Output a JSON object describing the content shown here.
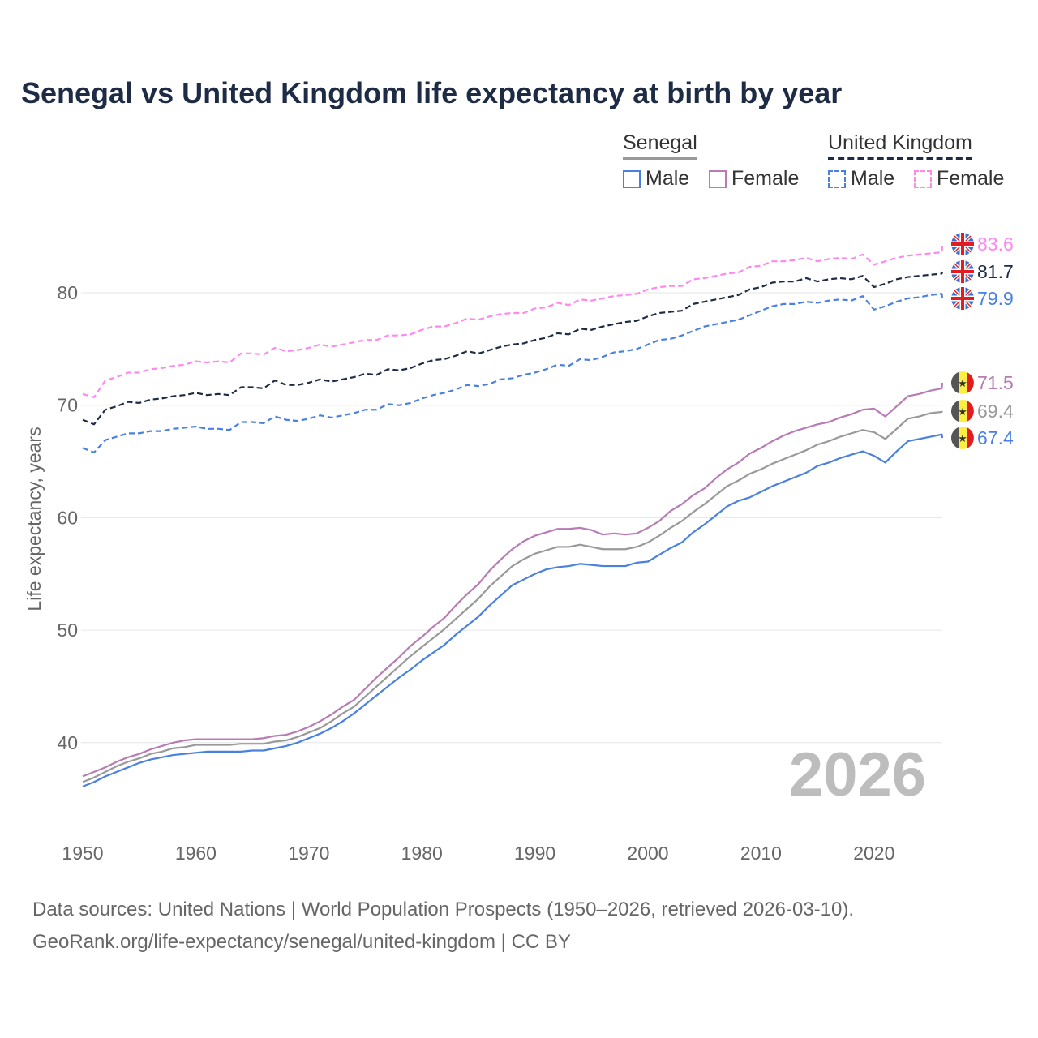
{
  "chart_data": {
    "type": "line",
    "title": "Senegal vs United Kingdom life expectancy at birth by year",
    "xlabel": "",
    "ylabel": "Life expectancy, years",
    "xlim": [
      1950,
      2026
    ],
    "ylim": [
      32,
      88
    ],
    "x_ticks": [
      "1950",
      "1960",
      "1970",
      "1980",
      "1990",
      "2000",
      "2010",
      "2020"
    ],
    "y_ticks": [
      "40",
      "50",
      "60",
      "70",
      "80"
    ],
    "grid": true,
    "year_start": 1950,
    "legend": {
      "groups": [
        {
          "name": "Senegal",
          "items": [
            "Male",
            "Female"
          ]
        },
        {
          "name": "United Kingdom",
          "items": [
            "Male",
            "Female"
          ]
        }
      ],
      "placement": "top-right"
    },
    "series": [
      {
        "name": "United Kingdom Female",
        "country": "United Kingdom",
        "color": "#ff88ee",
        "dashed": true,
        "end_label": "83.6",
        "values": [
          71.0,
          70.7,
          72.2,
          72.5,
          72.9,
          72.9,
          73.2,
          73.3,
          73.5,
          73.6,
          73.9,
          73.8,
          73.9,
          73.8,
          74.6,
          74.6,
          74.5,
          75.1,
          74.8,
          74.9,
          75.1,
          75.4,
          75.2,
          75.4,
          75.6,
          75.8,
          75.8,
          76.2,
          76.2,
          76.3,
          76.7,
          77.0,
          77.0,
          77.3,
          77.7,
          77.6,
          77.9,
          78.1,
          78.2,
          78.2,
          78.6,
          78.7,
          79.1,
          78.9,
          79.4,
          79.3,
          79.5,
          79.7,
          79.8,
          79.9,
          80.3,
          80.5,
          80.6,
          80.6,
          81.2,
          81.3,
          81.5,
          81.7,
          81.8,
          82.3,
          82.4,
          82.8,
          82.8,
          82.9,
          83.1,
          82.8,
          83.0,
          83.1,
          83.0,
          83.4,
          82.5,
          82.8,
          83.1,
          83.3,
          83.4,
          83.5,
          83.6
        ]
      },
      {
        "name": "United Kingdom Total",
        "country": "United Kingdom",
        "color": "#1d2b45",
        "dashed": true,
        "end_label": "81.7",
        "values": [
          68.7,
          68.3,
          69.6,
          69.9,
          70.3,
          70.2,
          70.5,
          70.6,
          70.8,
          70.9,
          71.1,
          70.9,
          71.0,
          70.9,
          71.6,
          71.6,
          71.5,
          72.2,
          71.8,
          71.8,
          72.0,
          72.3,
          72.1,
          72.3,
          72.5,
          72.8,
          72.7,
          73.2,
          73.1,
          73.3,
          73.7,
          74.0,
          74.1,
          74.4,
          74.8,
          74.6,
          74.9,
          75.2,
          75.4,
          75.5,
          75.8,
          76.0,
          76.4,
          76.3,
          76.8,
          76.7,
          77.0,
          77.2,
          77.4,
          77.5,
          77.9,
          78.2,
          78.3,
          78.4,
          79.0,
          79.2,
          79.4,
          79.6,
          79.8,
          80.3,
          80.5,
          80.9,
          81.0,
          81.0,
          81.3,
          81.0,
          81.2,
          81.3,
          81.2,
          81.5,
          80.5,
          80.8,
          81.2,
          81.4,
          81.5,
          81.6,
          81.7
        ]
      },
      {
        "name": "United Kingdom Male",
        "country": "United Kingdom",
        "color": "#4a80e0",
        "dashed": true,
        "end_label": "79.9",
        "values": [
          66.2,
          65.8,
          66.9,
          67.2,
          67.5,
          67.5,
          67.7,
          67.7,
          67.9,
          68.0,
          68.1,
          67.9,
          67.9,
          67.8,
          68.5,
          68.5,
          68.4,
          69.0,
          68.7,
          68.6,
          68.8,
          69.1,
          68.9,
          69.1,
          69.3,
          69.6,
          69.6,
          70.1,
          70.0,
          70.2,
          70.6,
          70.9,
          71.1,
          71.4,
          71.8,
          71.7,
          71.9,
          72.3,
          72.4,
          72.7,
          72.9,
          73.2,
          73.6,
          73.5,
          74.1,
          74.0,
          74.3,
          74.7,
          74.8,
          75.0,
          75.4,
          75.8,
          75.9,
          76.2,
          76.6,
          77.0,
          77.2,
          77.4,
          77.6,
          78.0,
          78.4,
          78.8,
          79.0,
          79.0,
          79.2,
          79.1,
          79.3,
          79.4,
          79.3,
          79.7,
          78.5,
          78.8,
          79.2,
          79.5,
          79.6,
          79.8,
          79.9
        ]
      },
      {
        "name": "Senegal Female",
        "country": "Senegal",
        "color": "#b87cb4",
        "dashed": false,
        "end_label": "71.5",
        "values": [
          37.0,
          37.4,
          37.8,
          38.3,
          38.7,
          39.0,
          39.4,
          39.7,
          40.0,
          40.2,
          40.3,
          40.3,
          40.3,
          40.3,
          40.3,
          40.3,
          40.4,
          40.6,
          40.7,
          41.0,
          41.4,
          41.9,
          42.5,
          43.2,
          43.8,
          44.8,
          45.8,
          46.7,
          47.6,
          48.6,
          49.4,
          50.3,
          51.1,
          52.2,
          53.2,
          54.1,
          55.3,
          56.3,
          57.2,
          57.9,
          58.4,
          58.7,
          59.0,
          59.0,
          59.1,
          58.9,
          58.5,
          58.6,
          58.5,
          58.6,
          59.1,
          59.7,
          60.6,
          61.2,
          62.0,
          62.6,
          63.5,
          64.3,
          64.9,
          65.7,
          66.2,
          66.8,
          67.3,
          67.7,
          68.0,
          68.3,
          68.5,
          68.9,
          69.2,
          69.6,
          69.7,
          69.0,
          69.9,
          70.8,
          71.0,
          71.3,
          71.5
        ]
      },
      {
        "name": "Senegal Total",
        "country": "Senegal",
        "color": "#999999",
        "dashed": false,
        "end_label": "69.4",
        "values": [
          36.5,
          36.9,
          37.4,
          37.9,
          38.3,
          38.6,
          39.0,
          39.2,
          39.5,
          39.6,
          39.8,
          39.8,
          39.8,
          39.8,
          39.9,
          39.9,
          39.9,
          40.1,
          40.2,
          40.5,
          40.9,
          41.3,
          41.9,
          42.6,
          43.2,
          44.1,
          45.0,
          45.9,
          46.8,
          47.7,
          48.5,
          49.3,
          50.1,
          51.0,
          51.9,
          52.8,
          53.9,
          54.8,
          55.7,
          56.3,
          56.8,
          57.1,
          57.4,
          57.4,
          57.6,
          57.4,
          57.2,
          57.2,
          57.2,
          57.4,
          57.8,
          58.4,
          59.1,
          59.7,
          60.5,
          61.2,
          62.0,
          62.8,
          63.3,
          63.9,
          64.3,
          64.8,
          65.2,
          65.6,
          66.0,
          66.5,
          66.8,
          67.2,
          67.5,
          67.8,
          67.6,
          67.0,
          67.9,
          68.8,
          69.0,
          69.3,
          69.4
        ]
      },
      {
        "name": "Senegal Male",
        "country": "Senegal",
        "color": "#4a80e0",
        "dashed": false,
        "end_label": "67.4",
        "values": [
          36.1,
          36.5,
          37.0,
          37.4,
          37.8,
          38.2,
          38.5,
          38.7,
          38.9,
          39.0,
          39.1,
          39.2,
          39.2,
          39.2,
          39.2,
          39.3,
          39.3,
          39.5,
          39.7,
          40.0,
          40.4,
          40.8,
          41.3,
          41.9,
          42.6,
          43.4,
          44.2,
          45.0,
          45.8,
          46.5,
          47.3,
          48.0,
          48.7,
          49.6,
          50.4,
          51.2,
          52.2,
          53.1,
          54.0,
          54.5,
          55.0,
          55.4,
          55.6,
          55.7,
          55.9,
          55.8,
          55.7,
          55.7,
          55.7,
          56.0,
          56.1,
          56.7,
          57.3,
          57.8,
          58.7,
          59.4,
          60.2,
          61.0,
          61.5,
          61.8,
          62.3,
          62.8,
          63.2,
          63.6,
          64.0,
          64.6,
          64.9,
          65.3,
          65.6,
          65.9,
          65.5,
          64.9,
          65.9,
          66.8,
          67.0,
          67.2,
          67.4
        ]
      }
    ],
    "annotation": "2026"
  },
  "colors": {
    "uk_female": "#ff88ee",
    "uk_total": "#1d2b45",
    "male": "#4a80e0",
    "sn_female": "#b87cb4",
    "sn_total": "#999999"
  },
  "footer": {
    "line1": "Data sources: United Nations | World Population Prospects (1950–2026, retrieved 2026-03-10).",
    "line2": "GeoRank.org/life-expectancy/senegal/united-kingdom | CC BY"
  }
}
